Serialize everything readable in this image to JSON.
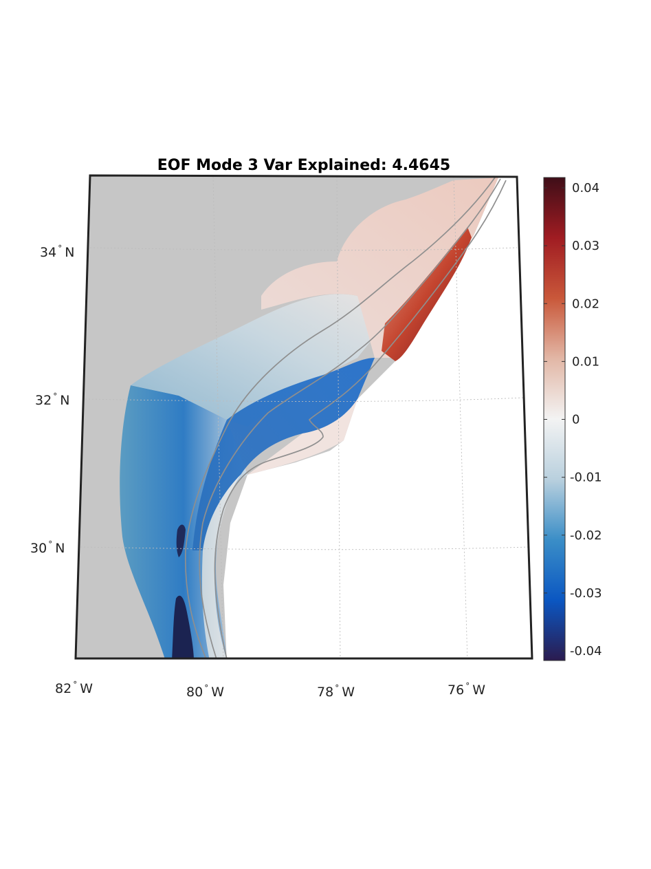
{
  "title": "EOF Mode 3 Var Explained: 4.4645",
  "latitude_labels": [
    {
      "value": "34",
      "suffix": "N"
    },
    {
      "value": "32",
      "suffix": "N"
    },
    {
      "value": "30",
      "suffix": "N"
    }
  ],
  "longitude_labels": [
    {
      "value": "82",
      "suffix": "W"
    },
    {
      "value": "80",
      "suffix": "W"
    },
    {
      "value": "78",
      "suffix": "W"
    },
    {
      "value": "76",
      "suffix": "W"
    }
  ],
  "degree_symbol": "°",
  "colorbar": {
    "min": -0.04,
    "max": 0.04,
    "tick_labels": [
      "0.04",
      "0.03",
      "0.02",
      "0.01",
      "0",
      "-0.01",
      "-0.02",
      "-0.03",
      "-0.04"
    ],
    "colors": [
      "#2b1b4f",
      "#0b57c2",
      "#3b8ec7",
      "#b9d0de",
      "#f3f3f3",
      "#e2b7a6",
      "#c9583a",
      "#a01c22",
      "#3f0e18"
    ]
  },
  "colors": {
    "land": "#c6c6c6",
    "ocean_background": "#ffffff",
    "frame": "#222222",
    "isobath": "#8f8f8f",
    "grid": "#bcbcbc"
  }
}
